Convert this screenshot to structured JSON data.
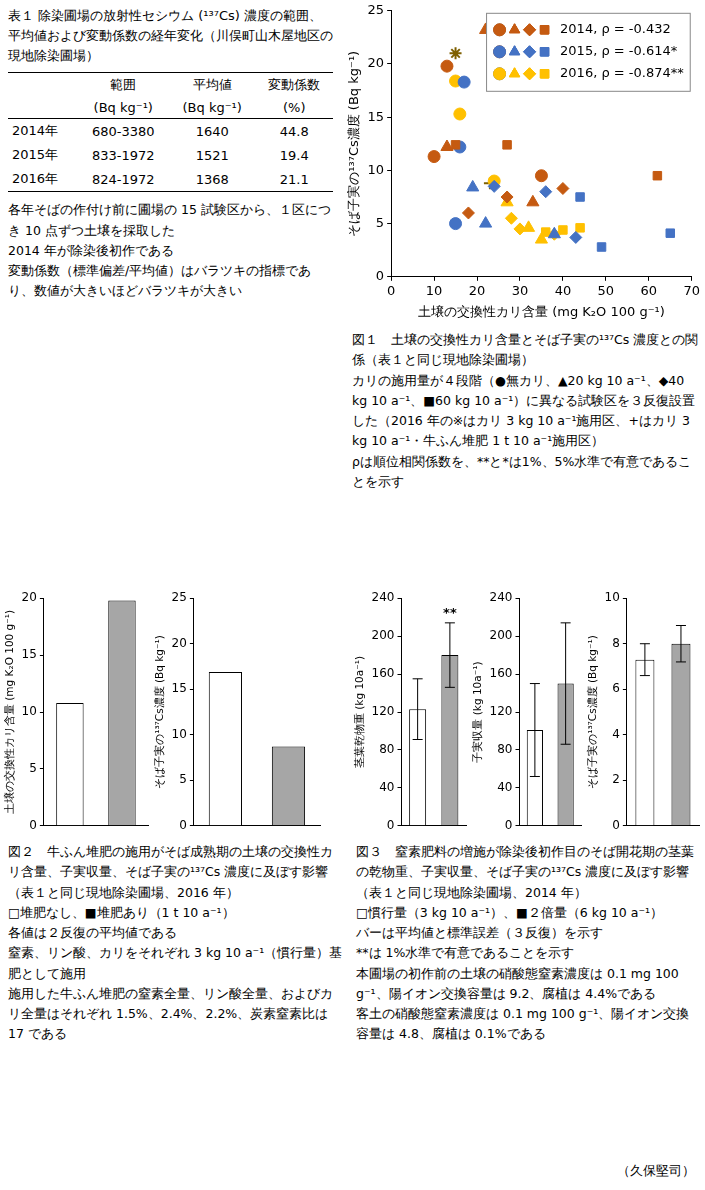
{
  "table1": {
    "title": "表１ 除染圃場の放射性セシウム (¹³⁷Cs) 濃度の範囲、平均値および変動係数の経年変化（川俣町山木屋地区の現地除染圃場）",
    "header": [
      "",
      "範囲",
      "平均値",
      "変動係数"
    ],
    "units": [
      "",
      "(Bq kg⁻¹)",
      "(Bq kg⁻¹)",
      "(%)"
    ],
    "rows": [
      [
        "2014年",
        "680-3380",
        1640,
        44.8
      ],
      [
        "2015年",
        "833-1972",
        1521,
        19.4
      ],
      [
        "2016年",
        "824-1972",
        1368,
        21.1
      ]
    ],
    "notes": [
      "各年そばの作付け前に圃場の 15 試験区から、１区につき 10 点ずつ土壌を採取した",
      "2014 年が除染後初作である",
      "変動係数（標準偏差/平均値）はバラツキの指標であり、数値が大きいほどバラツキが大きい"
    ]
  },
  "captions": {
    "fig1": {
      "title": "図１　土壌の交換性カリ含量とそば子実の¹³⁷Cs 濃度との関係（表１と同じ現地除染圃場）",
      "notes": [
        "カリの施用量が４段階（●無カリ、▲20 kg 10 a⁻¹、◆40 kg 10 a⁻¹、■60 kg 10 a⁻¹）に異なる試験区を３反復設置した（2016 年の※はカリ 3 kg 10 a⁻¹施用区、+はカリ 3 kg 10 a⁻¹・牛ふん堆肥 1 t 10 a⁻¹施用区）",
        "ρは順位相関係数を、**と*は1%、5%水準で有意であることを示す"
      ]
    },
    "fig2": {
      "title": "図２　牛ふん堆肥の施用がそば成熟期の土壌の交換性カリ含量、子実収量、そば子実の¹³⁷Cs 濃度に及ぼす影響（表１と同じ現地除染圃場、2016 年）",
      "notes": [
        "□堆肥なし、■堆肥あり（1 t 10 a⁻¹）",
        "各値は２反復の平均値である",
        "窒素、リン酸、カリをそれぞれ 3 kg 10 a⁻¹（慣行量）基肥として施用",
        "施用した牛ふん堆肥の窒素全量、リン酸全量、およびカリ全量はそれぞれ 1.5%、2.4%、2.2%、炭素窒素比は 17 である"
      ]
    },
    "fig3": {
      "title": "図３　窒素肥料の増施が除染後初作目のそば開花期の茎葉の乾物重、子実収量、そば子実の¹³⁷Cs 濃度に及ぼす影響（表１と同じ現地除染圃場、2014 年）",
      "notes": [
        "□慣行量（3 kg 10 a⁻¹）、■２倍量（6 kg 10 a⁻¹）",
        "バーは平均値と標準誤差（３反復）を示す",
        "**は 1%水準で有意であることを示す",
        "本圃場の初作前の土壌の硝酸態窒素濃度は 0.1 mg 100 g⁻¹、陽イオン交換容量は 9.2、腐植は 4.4%である",
        "客土の硝酸態窒素濃度は 0.1 mg 100 g⁻¹、陽イオン交換容量は 4.8、腐植は 0.1%である"
      ]
    }
  },
  "author": "（久保堅司）",
  "chart_data": [
    {
      "type": "scatter",
      "x_label": "土壌の交換性カリ含量 (mg K₂O 100 g⁻¹)",
      "y_label": "そば子実の¹³⁷Cs濃度 (Bq kg⁻¹)",
      "xlim": [
        0,
        70
      ],
      "xticks": [
        0,
        10,
        20,
        30,
        40,
        50,
        60,
        70
      ],
      "ylim": [
        0,
        25
      ],
      "yticks": [
        0,
        5,
        10,
        15,
        20,
        25
      ],
      "grid": false,
      "legend": "upper right",
      "series": [
        {
          "name": "2014, ρ = -0.432",
          "color": "#c55a11",
          "marker": "circle",
          "values": [
            [
              13,
              19.8
            ],
            [
              10,
              11.3
            ],
            [
              35,
              9.5
            ]
          ]
        },
        {
          "name": "2014, ρ = -0.432",
          "color": "#c55a11",
          "marker": "triangle",
          "values": [
            [
              22,
              23.2
            ],
            [
              13,
              12.2
            ],
            [
              33,
              7.0
            ]
          ]
        },
        {
          "name": "2014, ρ = -0.432",
          "color": "#c55a11",
          "marker": "diamond",
          "values": [
            [
              18,
              6.0
            ],
            [
              27,
              7.5
            ],
            [
              40,
              8.3
            ]
          ]
        },
        {
          "name": "2014, ρ = -0.432",
          "color": "#c55a11",
          "marker": "square",
          "values": [
            [
              15,
              12.4
            ],
            [
              27,
              12.4
            ],
            [
              62,
              9.5
            ]
          ]
        },
        {
          "name": "2015, ρ = -0.614*",
          "color": "#4472c4",
          "marker": "circle",
          "values": [
            [
              17,
              18.3
            ],
            [
              16,
              12.2
            ],
            [
              15,
              5.0
            ]
          ]
        },
        {
          "name": "2015, ρ = -0.614*",
          "color": "#4472c4",
          "marker": "triangle",
          "values": [
            [
              19,
              8.4
            ],
            [
              22,
              5.0
            ],
            [
              38,
              4.0
            ]
          ]
        },
        {
          "name": "2015, ρ = -0.614*",
          "color": "#4472c4",
          "marker": "diamond",
          "values": [
            [
              24,
              8.5
            ],
            [
              36,
              8.0
            ],
            [
              43,
              3.7
            ]
          ]
        },
        {
          "name": "2015, ρ = -0.614*",
          "color": "#4472c4",
          "marker": "square",
          "values": [
            [
              44,
              7.5
            ],
            [
              49,
              2.8
            ],
            [
              65,
              4.1
            ]
          ]
        },
        {
          "name": "2016, ρ = -0.874**",
          "color": "#ffc000",
          "marker": "circle",
          "values": [
            [
              15,
              18.4
            ],
            [
              16,
              15.3
            ],
            [
              24,
              9.0
            ]
          ]
        },
        {
          "name": "2016, ρ = -0.874**",
          "color": "#ffc000",
          "marker": "triangle",
          "values": [
            [
              27,
              7.0
            ],
            [
              32,
              4.6
            ],
            [
              35,
              3.5
            ]
          ]
        },
        {
          "name": "2016, ρ = -0.874**",
          "color": "#ffc000",
          "marker": "diamond",
          "values": [
            [
              28,
              5.5
            ],
            [
              30,
              4.5
            ],
            [
              38,
              4.0
            ]
          ]
        },
        {
          "name": "2016, ρ = -0.874**",
          "color": "#ffc000",
          "marker": "square",
          "values": [
            [
              36,
              4.2
            ],
            [
              40,
              4.4
            ],
            [
              44,
              4.6
            ]
          ]
        },
        {
          "color": "#7f6000",
          "marker": "star",
          "values": [
            [
              15,
              21.0
            ]
          ]
        },
        {
          "color": "#7f6000",
          "marker": "cross",
          "values": [
            [
              23,
              8.8
            ]
          ]
        }
      ]
    },
    {
      "type": "bar",
      "y_label": "土壌の交換性カリ含量 (mg K₂O 100 g⁻¹)",
      "categories": [
        null,
        null
      ],
      "values": [
        10.8,
        19.8
      ],
      "colors": [
        "#ffffff",
        "#a6a6a6"
      ],
      "ylim": [
        0,
        20
      ],
      "yticks": [
        0,
        5,
        10,
        15,
        20
      ],
      "grid": false,
      "tick_labels": "y"
    },
    {
      "type": "bar",
      "y_label": "そば子実の¹³⁷Cs濃度 (Bq kg⁻¹)",
      "categories": [
        null,
        null
      ],
      "values": [
        16.9,
        8.7
      ],
      "colors": [
        "#ffffff",
        "#a6a6a6"
      ],
      "ylim": [
        0,
        25
      ],
      "yticks": [
        0,
        5,
        10,
        15,
        20,
        25
      ],
      "grid": false,
      "tick_labels": "y"
    },
    {
      "type": "bar",
      "y_label": "茎葉乾物重 (kg 10a⁻¹)",
      "categories": [
        null,
        null
      ],
      "values": [
        123,
        180
      ],
      "errors": [
        32,
        34
      ],
      "significance": [
        null,
        "**"
      ],
      "colors": [
        "#ffffff",
        "#a6a6a6"
      ],
      "ylim": [
        0,
        240
      ],
      "yticks": [
        0,
        40,
        80,
        120,
        160,
        200,
        240
      ],
      "grid": false,
      "tick_labels": "y"
    },
    {
      "type": "bar",
      "y_label": "子実収量 (kg 10a⁻¹)",
      "categories": [
        null,
        null
      ],
      "values": [
        101,
        150
      ],
      "errors": [
        49,
        64
      ],
      "colors": [
        "#ffffff",
        "#a6a6a6"
      ],
      "ylim": [
        0,
        240
      ],
      "yticks": [
        0,
        40,
        80,
        120,
        160,
        200,
        240
      ],
      "grid": false,
      "tick_labels": "y"
    },
    {
      "type": "bar",
      "y_label": "そば子実の¹³⁷Cs濃度 (Bq kg⁻¹)",
      "categories": [
        null,
        null
      ],
      "values": [
        7.3,
        8.0
      ],
      "errors": [
        0.7,
        0.8
      ],
      "colors": [
        "#ffffff",
        "#a6a6a6"
      ],
      "ylim": [
        0,
        10
      ],
      "yticks": [
        0,
        2,
        4,
        6,
        8,
        10
      ],
      "grid": false,
      "tick_labels": "y"
    }
  ]
}
